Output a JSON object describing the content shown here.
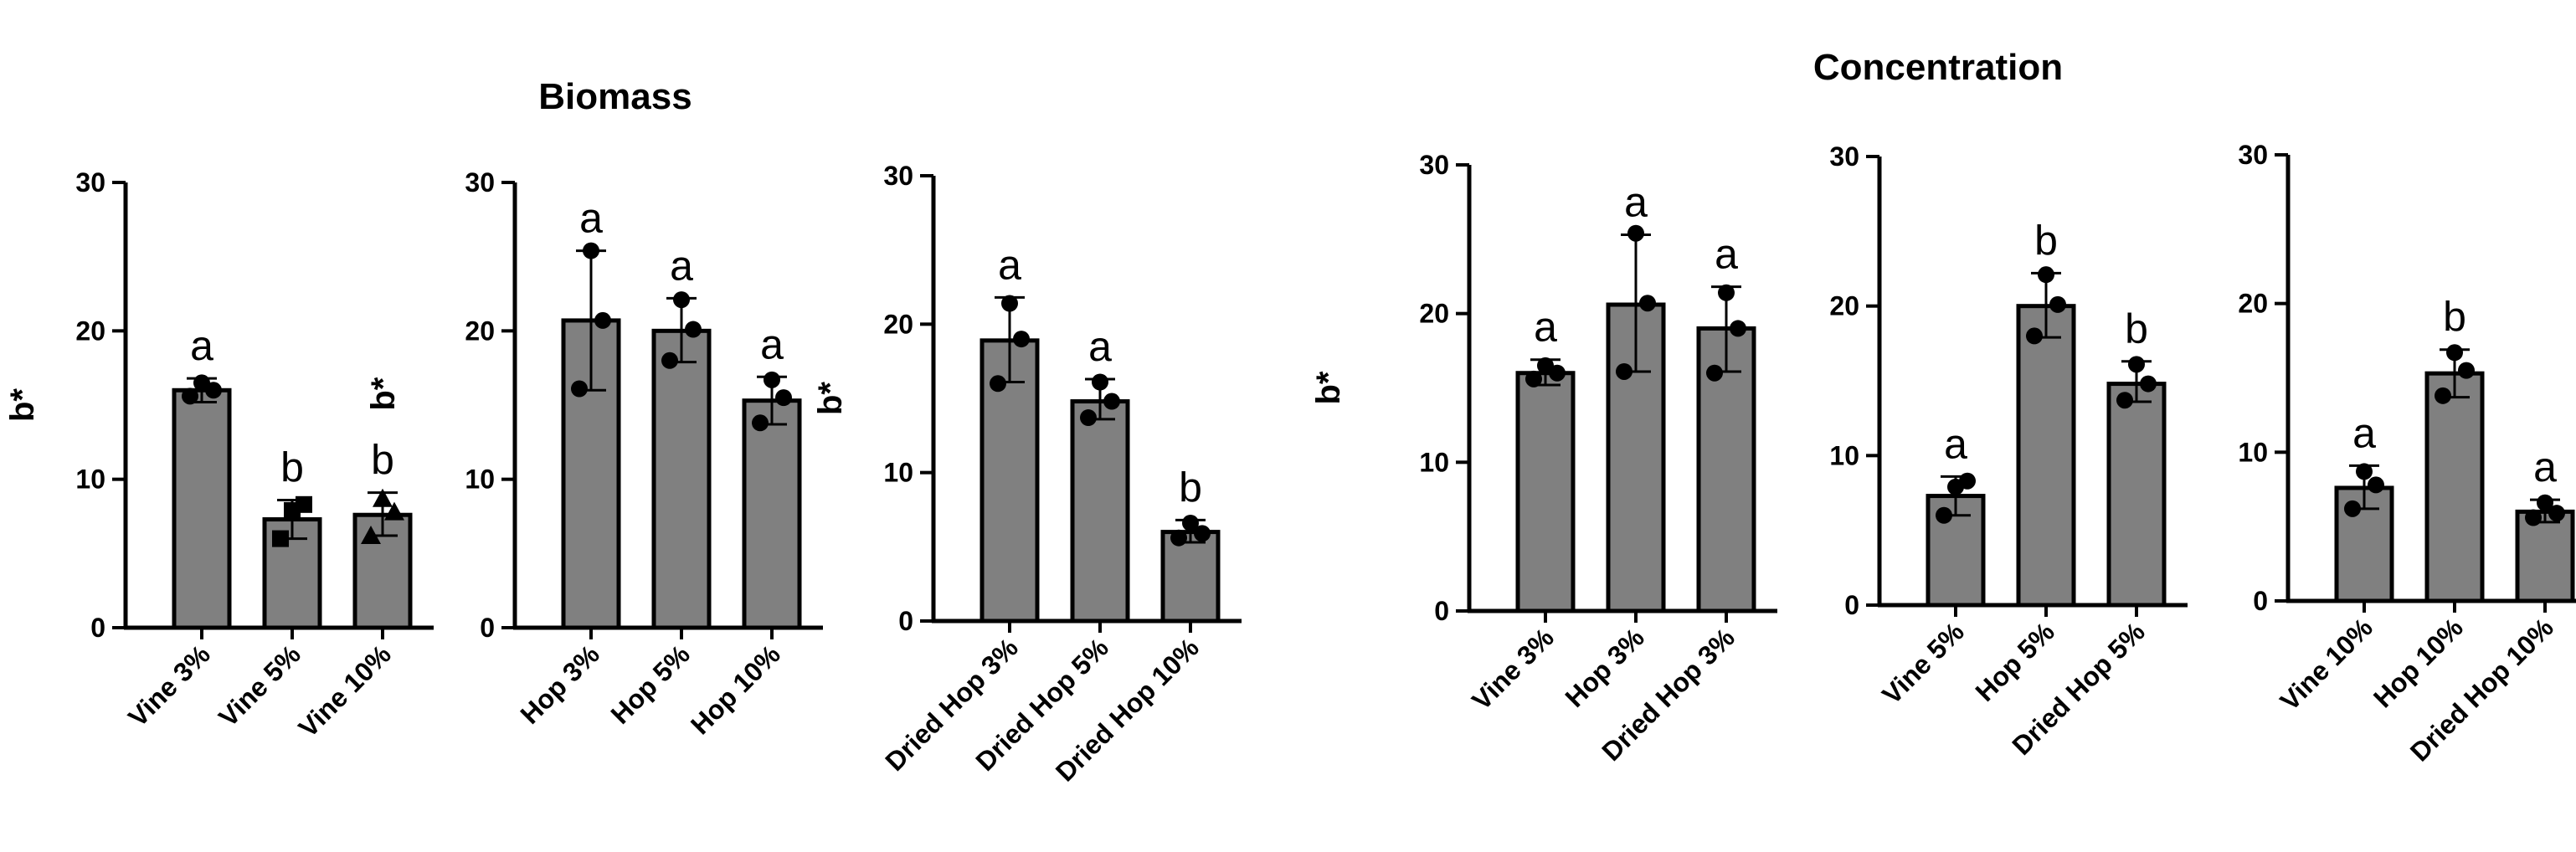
{
  "titles": {
    "biomass": "Biomass",
    "concentration": "Concentration"
  },
  "colors": {
    "bar_fill": "#808080",
    "bar_stroke": "#000000",
    "axis": "#000000",
    "points": "#000000"
  },
  "chart_data": [
    {
      "type": "bar",
      "group": "Biomass",
      "ylabel": "b*",
      "ylim": [
        0,
        30
      ],
      "yticks": [
        0,
        10,
        20,
        30
      ],
      "categories": [
        "Vine 3%",
        "Vine 5%",
        "Vine 10%"
      ],
      "values": [
        16.0,
        7.3,
        7.6
      ],
      "error": [
        [
          15.2,
          16.8
        ],
        [
          6.0,
          8.6
        ],
        [
          6.2,
          9.1
        ]
      ],
      "points": [
        [
          16.5,
          15.6,
          16.0
        ],
        [
          7.9,
          6.0,
          8.3
        ],
        [
          8.7,
          6.2,
          7.8
        ]
      ],
      "point_markers": [
        "circle",
        "square",
        "triangle"
      ],
      "significance": [
        "a",
        "b",
        "b"
      ],
      "annotations": [
        "b*"
      ]
    },
    {
      "type": "bar",
      "group": "Biomass",
      "ylabel": "",
      "ylim": [
        0,
        30
      ],
      "yticks": [
        0,
        10,
        20,
        30
      ],
      "categories": [
        "Hop 3%",
        "Hop 5%",
        "Hop 10%"
      ],
      "values": [
        20.7,
        20.0,
        15.3
      ],
      "error": [
        [
          16.0,
          25.4
        ],
        [
          17.9,
          22.2
        ],
        [
          13.7,
          16.9
        ]
      ],
      "points": [
        [
          25.4,
          16.1,
          20.7
        ],
        [
          22.1,
          18.0,
          20.1
        ],
        [
          16.7,
          13.8,
          15.5
        ]
      ],
      "significance": [
        "a",
        "a",
        "a"
      ]
    },
    {
      "type": "bar",
      "group": "Biomass",
      "ylabel": "b*",
      "ylim": [
        0,
        30
      ],
      "yticks": [
        0,
        10,
        20,
        30
      ],
      "categories": [
        "Dried Hop 3%",
        "Dried Hop 5%",
        "Dried Hop 10%"
      ],
      "values": [
        18.9,
        14.8,
        6.0
      ],
      "error": [
        [
          16.1,
          21.8
        ],
        [
          13.6,
          16.3
        ],
        [
          5.3,
          6.8
        ]
      ],
      "points": [
        [
          21.4,
          16.0,
          19.0
        ],
        [
          16.1,
          13.7,
          14.8
        ],
        [
          6.6,
          5.6,
          5.9
        ]
      ],
      "significance": [
        "a",
        "a",
        "b"
      ]
    },
    {
      "type": "bar",
      "group": "Concentration",
      "ylabel": "b*",
      "ylim": [
        0,
        30
      ],
      "yticks": [
        0,
        10,
        20,
        30
      ],
      "categories": [
        "Vine 3%",
        "Hop 3%",
        "Dried Hop 3%"
      ],
      "values": [
        16.0,
        20.6,
        19.0
      ],
      "error": [
        [
          15.2,
          16.9
        ],
        [
          16.1,
          25.3
        ],
        [
          16.1,
          21.8
        ]
      ],
      "points": [
        [
          16.5,
          15.6,
          16.0
        ],
        [
          25.4,
          16.1,
          20.7
        ],
        [
          21.4,
          16.0,
          19.0
        ]
      ],
      "significance": [
        "a",
        "a",
        "a"
      ]
    },
    {
      "type": "bar",
      "group": "Concentration",
      "ylabel": "",
      "ylim": [
        0,
        30
      ],
      "yticks": [
        0,
        10,
        20,
        30
      ],
      "categories": [
        "Vine 5%",
        "Hop 5%",
        "Dried Hop 5%"
      ],
      "values": [
        7.3,
        20.0,
        14.8
      ],
      "error": [
        [
          6.0,
          8.6
        ],
        [
          17.9,
          22.2
        ],
        [
          13.6,
          16.3
        ]
      ],
      "points": [
        [
          7.9,
          6.0,
          8.3
        ],
        [
          22.1,
          18.0,
          20.1
        ],
        [
          16.1,
          13.7,
          14.8
        ]
      ],
      "significance": [
        "a",
        "b",
        "b"
      ]
    },
    {
      "type": "bar",
      "group": "Concentration",
      "ylabel": "",
      "ylim": [
        0,
        30
      ],
      "yticks": [
        0,
        10,
        20,
        30
      ],
      "categories": [
        "Vine 10%",
        "Hop 10%",
        "Dried Hop 10%"
      ],
      "values": [
        7.6,
        15.3,
        6.0
      ],
      "error": [
        [
          6.2,
          9.1
        ],
        [
          13.7,
          16.9
        ],
        [
          5.3,
          6.8
        ]
      ],
      "points": [
        [
          8.7,
          6.2,
          7.8
        ],
        [
          16.7,
          13.8,
          15.5
        ],
        [
          6.6,
          5.6,
          5.9
        ]
      ],
      "significance": [
        "a",
        "b",
        "a"
      ]
    }
  ]
}
